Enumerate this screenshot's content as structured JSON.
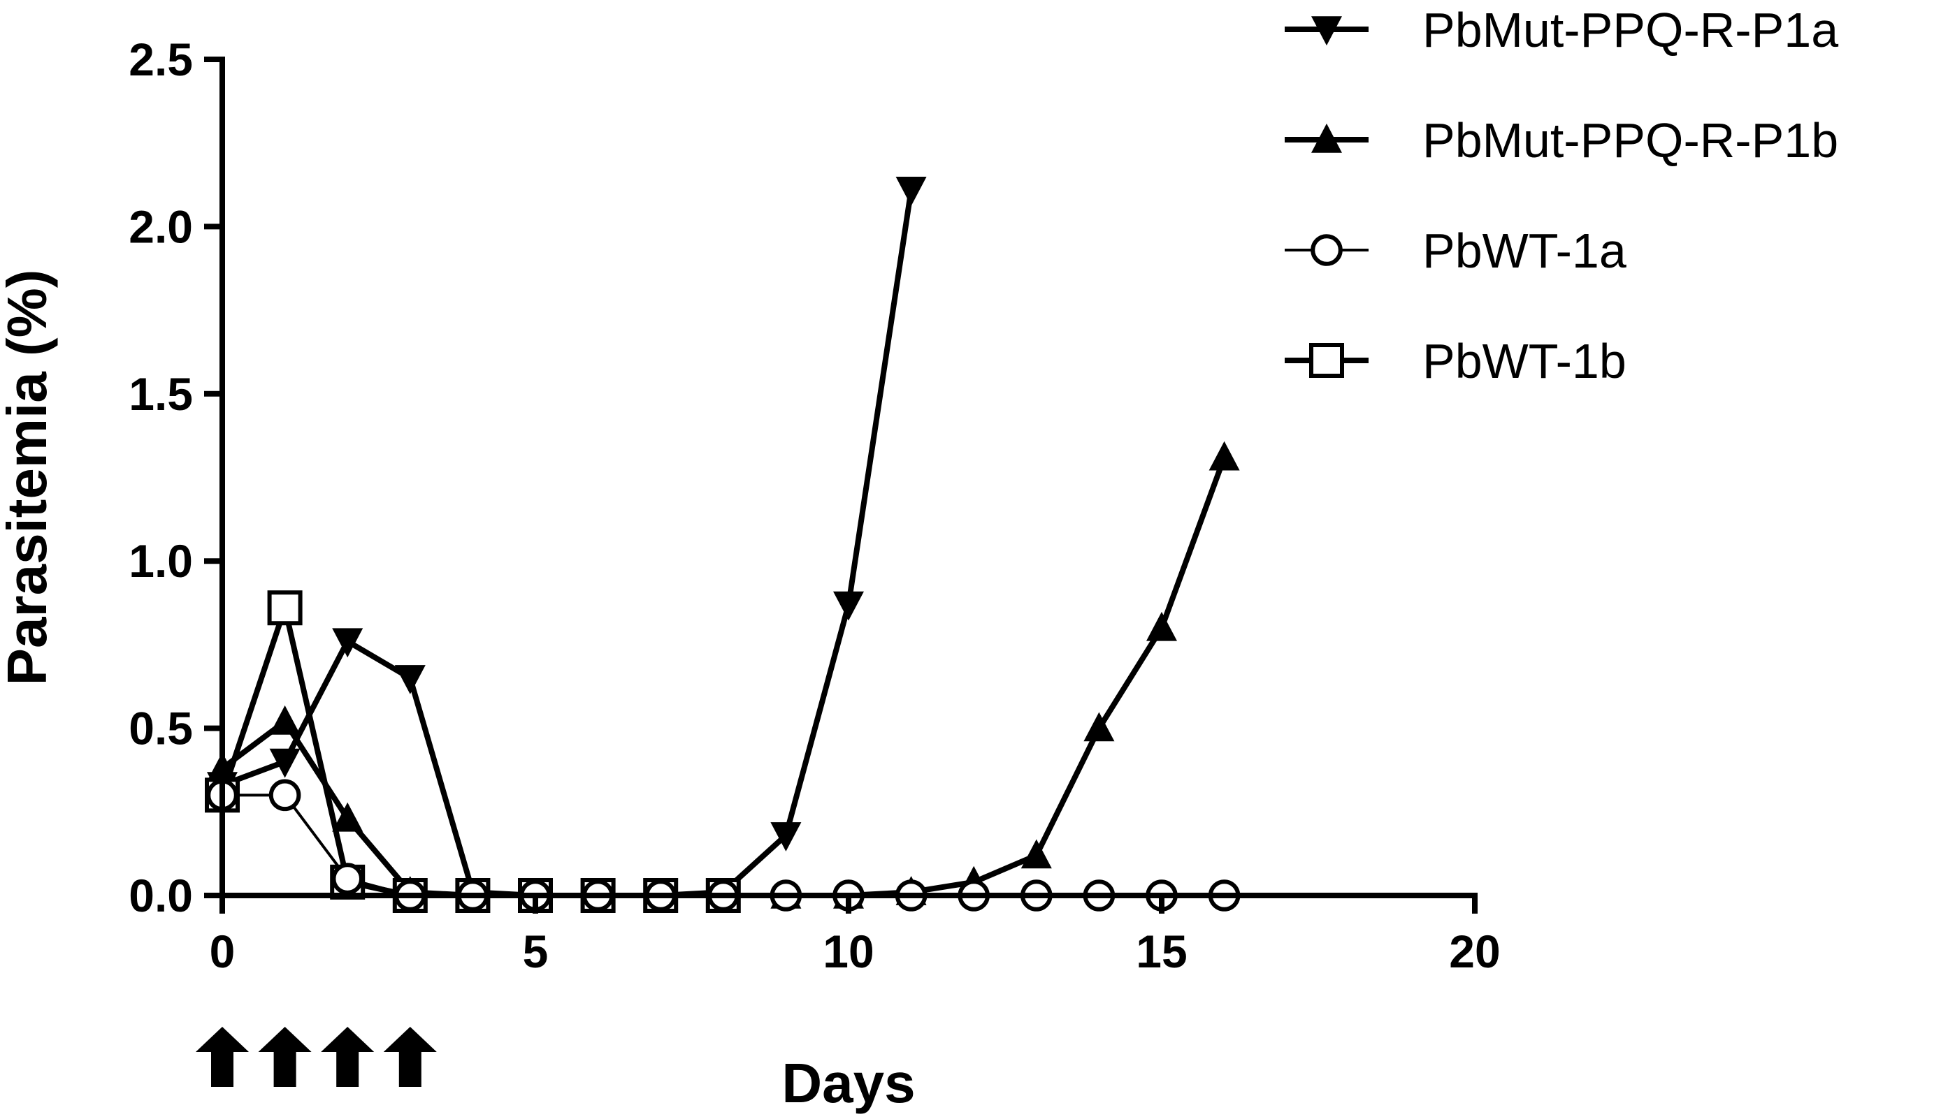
{
  "chart_data": {
    "type": "line",
    "xlabel": "Days",
    "ylabel": "Parasitemia (%)",
    "xlim": [
      0,
      20
    ],
    "ylim": [
      0,
      2.5
    ],
    "xticks": [
      0,
      5,
      10,
      15,
      20
    ],
    "yticks": [
      0.0,
      0.5,
      1.0,
      1.5,
      2.0,
      2.5
    ],
    "xtick_labels": [
      "0",
      "5",
      "10",
      "15",
      "20"
    ],
    "ytick_labels": [
      "0.0",
      "0.5",
      "1.0",
      "1.5",
      "2.0",
      "2.5"
    ],
    "legend_position": "top-right",
    "grid": false,
    "treatment_days": [
      0,
      1,
      2,
      3
    ],
    "series": [
      {
        "name": "PbMut-PPQ-R-P1a",
        "marker": "triangle-down",
        "x": [
          0,
          1,
          2,
          3,
          4,
          5,
          6,
          7,
          8,
          9,
          10,
          11
        ],
        "y": [
          0.33,
          0.4,
          0.76,
          0.65,
          0.01,
          0.0,
          0.0,
          0.0,
          0.01,
          0.18,
          0.87,
          2.11
        ]
      },
      {
        "name": "PbMut-PPQ-R-P1b",
        "marker": "triangle-up",
        "x": [
          0,
          1,
          2,
          3,
          4,
          5,
          6,
          7,
          8,
          9,
          10,
          11,
          12,
          13,
          14,
          15,
          16
        ],
        "y": [
          0.38,
          0.52,
          0.23,
          0.01,
          0.0,
          0.0,
          0.0,
          0.0,
          0.0,
          0.0,
          0.0,
          0.01,
          0.04,
          0.12,
          0.5,
          0.8,
          1.31
        ]
      },
      {
        "name": "PbWT-1a",
        "marker": "circle-open",
        "x": [
          0,
          1,
          2,
          3,
          4,
          5,
          6,
          7,
          8,
          9,
          10,
          11,
          12,
          13,
          14,
          15,
          16
        ],
        "y": [
          0.3,
          0.3,
          0.05,
          0.0,
          0.0,
          0.0,
          0.0,
          0.0,
          0.0,
          0.0,
          0.0,
          0.0,
          0.0,
          0.0,
          0.0,
          0.0,
          0.0
        ]
      },
      {
        "name": "PbWT-1b",
        "marker": "square-open",
        "x": [
          0,
          1,
          2,
          3,
          4,
          5,
          6,
          7,
          8
        ],
        "y": [
          0.3,
          0.86,
          0.04,
          0.0,
          0.0,
          0.0,
          0.0,
          0.0,
          0.0
        ]
      }
    ]
  }
}
